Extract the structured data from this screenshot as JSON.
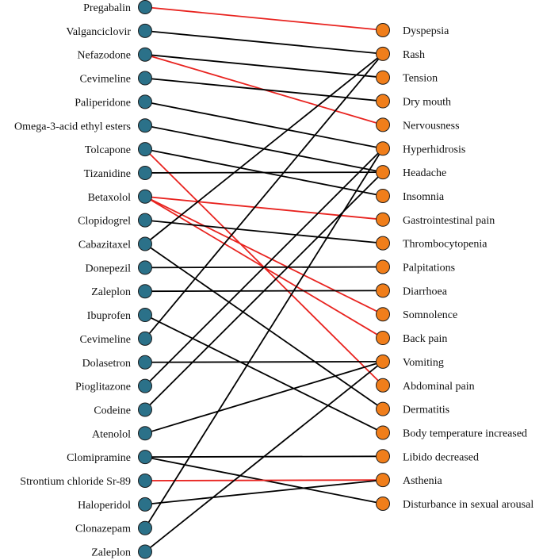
{
  "drugs": [
    "Pregabalin",
    "Valganciclovir",
    "Nefazodone",
    "Cevimeline",
    "Paliperidone",
    "Omega-3-acid ethyl esters",
    "Tolcapone",
    "Tizanidine",
    "Betaxolol",
    "Clopidogrel",
    "Cabazitaxel",
    "Donepezil",
    "Zaleplon",
    "Ibuprofen",
    "Cevimeline",
    "Dolasetron",
    "Pioglitazone",
    "Codeine",
    "Atenolol",
    "Clomipramine",
    "Strontium chloride Sr-89",
    "Haloperidol",
    "Clonazepam",
    "Zaleplon"
  ],
  "effects": [
    "Dyspepsia",
    "Rash",
    "Tension",
    "Dry mouth",
    "Nervousness",
    "Hyperhidrosis",
    "Headache",
    "Insomnia",
    "Gastrointestinal pain",
    "Thrombocytopenia",
    "Palpitations",
    "Diarrhoea",
    "Somnolence",
    "Back pain",
    "Vomiting",
    "Abdominal pain",
    "Dermatitis",
    "Body temperature increased",
    "Libido decreased",
    "Asthenia",
    "Disturbance in sexual arousal"
  ],
  "colors": {
    "drug_node": "#2b7189",
    "effect_node": "#f07e1b",
    "edge_black": "#000000",
    "edge_red": "#e8231f"
  },
  "edges": [
    {
      "drug": 0,
      "effect": 0,
      "color": "red"
    },
    {
      "drug": 1,
      "effect": 1,
      "color": "black"
    },
    {
      "drug": 2,
      "effect": 2,
      "color": "black"
    },
    {
      "drug": 2,
      "effect": 4,
      "color": "red"
    },
    {
      "drug": 3,
      "effect": 3,
      "color": "black"
    },
    {
      "drug": 4,
      "effect": 5,
      "color": "black"
    },
    {
      "drug": 5,
      "effect": 6,
      "color": "black"
    },
    {
      "drug": 6,
      "effect": 7,
      "color": "black"
    },
    {
      "drug": 6,
      "effect": 15,
      "color": "red"
    },
    {
      "drug": 7,
      "effect": 6,
      "color": "black"
    },
    {
      "drug": 8,
      "effect": 8,
      "color": "red"
    },
    {
      "drug": 8,
      "effect": 12,
      "color": "red"
    },
    {
      "drug": 8,
      "effect": 13,
      "color": "red"
    },
    {
      "drug": 9,
      "effect": 9,
      "color": "black"
    },
    {
      "drug": 10,
      "effect": 1,
      "color": "black"
    },
    {
      "drug": 10,
      "effect": 16,
      "color": "black"
    },
    {
      "drug": 11,
      "effect": 10,
      "color": "black"
    },
    {
      "drug": 12,
      "effect": 11,
      "color": "black"
    },
    {
      "drug": 13,
      "effect": 17,
      "color": "black"
    },
    {
      "drug": 14,
      "effect": 1,
      "color": "black"
    },
    {
      "drug": 15,
      "effect": 14,
      "color": "black"
    },
    {
      "drug": 16,
      "effect": 5,
      "color": "black"
    },
    {
      "drug": 17,
      "effect": 6,
      "color": "black"
    },
    {
      "drug": 18,
      "effect": 14,
      "color": "black"
    },
    {
      "drug": 19,
      "effect": 18,
      "color": "black"
    },
    {
      "drug": 19,
      "effect": 20,
      "color": "black"
    },
    {
      "drug": 20,
      "effect": 19,
      "color": "red"
    },
    {
      "drug": 21,
      "effect": 19,
      "color": "black"
    },
    {
      "drug": 22,
      "effect": 5,
      "color": "black"
    },
    {
      "drug": 23,
      "effect": 14,
      "color": "black"
    }
  ]
}
